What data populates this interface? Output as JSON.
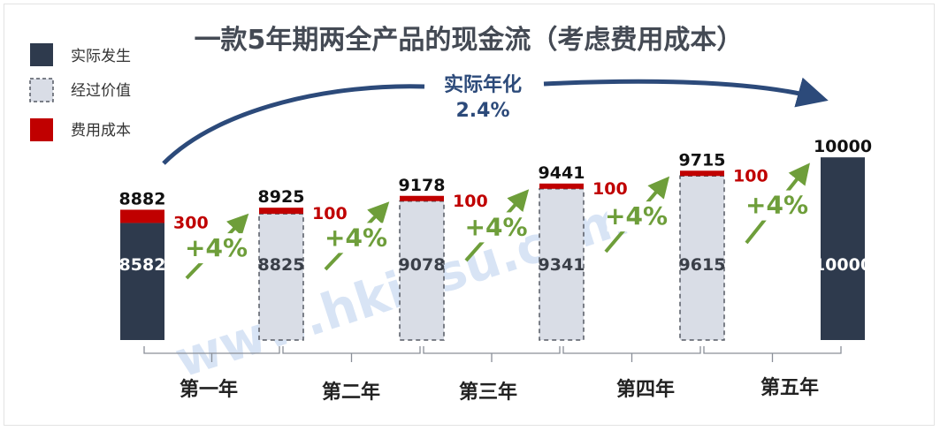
{
  "chart_data": {
    "type": "bar",
    "title": "一款5年期两全产品的现金流（考虑费用成本）",
    "legend": [
      {
        "label": "实际发生",
        "color": "#2e3a4d",
        "style": "solid"
      },
      {
        "label": "经过价值",
        "color": "#d9dde6",
        "style": "dashed"
      },
      {
        "label": "费用成本",
        "color": "#c00000",
        "style": "solid"
      }
    ],
    "annual_rate": {
      "label": "实际年化",
      "value": "2.4%"
    },
    "bars": [
      {
        "base": 8582,
        "base_label": "8582",
        "cost": 300,
        "cost_label": "300",
        "total": 8882,
        "total_label": "8882",
        "kind": "actual"
      },
      {
        "base": 8825,
        "base_label": "8825",
        "cost": 100,
        "cost_label": "100",
        "total": 8925,
        "total_label": "8925",
        "kind": "value"
      },
      {
        "base": 9078,
        "base_label": "9078",
        "cost": 100,
        "cost_label": "100",
        "total": 9178,
        "total_label": "9178",
        "kind": "value"
      },
      {
        "base": 9341,
        "base_label": "9341",
        "cost": 100,
        "cost_label": "100",
        "total": 9441,
        "total_label": "9441",
        "kind": "value"
      },
      {
        "base": 9615,
        "base_label": "9615",
        "cost": 100,
        "cost_label": "100",
        "total": 9715,
        "total_label": "9715",
        "kind": "value"
      },
      {
        "base": 10000,
        "base_label": "10000",
        "cost": 0,
        "cost_label": "",
        "total": 10000,
        "total_label": "10000",
        "kind": "actual"
      }
    ],
    "growth_labels": [
      "+4%",
      "+4%",
      "+4%",
      "+4%",
      "+4%"
    ],
    "years": [
      "第一年",
      "第二年",
      "第三年",
      "第四年",
      "第五年"
    ],
    "colors": {
      "actual": "#2e3a4d",
      "value": "#d9dde6",
      "value_border": "#555a63",
      "cost": "#c00000",
      "growth": "#6e9e3a",
      "arc": "#2c4a7a"
    }
  },
  "watermark": "www.hkinsu.com"
}
